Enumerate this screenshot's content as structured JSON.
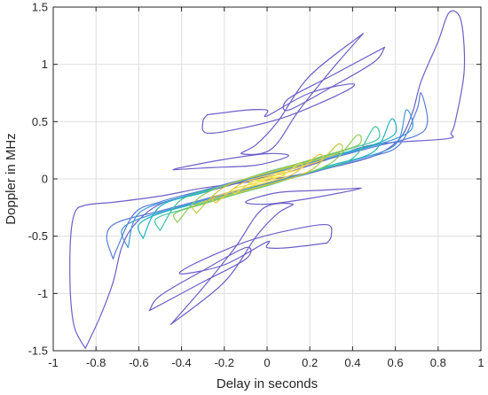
{
  "chart_data": {
    "type": "contour",
    "title": "",
    "xlabel": "Delay in seconds",
    "ylabel": "Doppler in MHz",
    "xlim": [
      -1,
      1
    ],
    "ylim": [
      -1.5,
      1.5
    ],
    "xticks": [
      -1,
      -0.8,
      -0.6,
      -0.4,
      -0.2,
      0,
      0.2,
      0.4,
      0.6,
      0.8,
      1
    ],
    "yticks": [
      -1.5,
      -1,
      -0.5,
      0,
      0.5,
      1,
      1.5
    ],
    "xtick_labels": [
      "-1",
      "-0.8",
      "-0.6",
      "-0.4",
      "-0.2",
      "0",
      "0.2",
      "0.4",
      "0.6",
      "0.8",
      "1"
    ],
    "ytick_labels": [
      "-1.5",
      "-1",
      "-0.5",
      "0",
      "0.5",
      "1",
      "1.5"
    ],
    "grid": true,
    "colormap": "parula",
    "contours": [
      {
        "level": 1,
        "color": "#6b5fc7",
        "pts": [
          [
            -0.85,
            -1.48
          ],
          [
            -0.9,
            -1.3
          ],
          [
            -0.92,
            -1.0
          ],
          [
            -0.92,
            -0.55
          ],
          [
            -0.9,
            -0.3
          ],
          [
            -0.85,
            -0.23
          ],
          [
            -0.7,
            -0.2
          ],
          [
            -0.5,
            -0.15
          ],
          [
            -0.3,
            -0.08
          ],
          [
            -0.1,
            -0.03
          ],
          [
            0.1,
            0.02
          ],
          [
            0.3,
            0.1
          ],
          [
            0.5,
            0.2
          ],
          [
            0.62,
            0.35
          ],
          [
            0.68,
            0.58
          ],
          [
            0.72,
            0.85
          ],
          [
            0.8,
            1.2
          ],
          [
            0.85,
            1.45
          ],
          [
            0.9,
            1.42
          ],
          [
            0.92,
            1.2
          ],
          [
            0.92,
            0.9
          ],
          [
            0.88,
            0.5
          ],
          [
            0.86,
            0.4
          ],
          [
            0.84,
            0.35
          ],
          [
            0.5,
            0.3
          ],
          [
            0.3,
            0.18
          ],
          [
            0.1,
            0.06
          ],
          [
            -0.1,
            -0.02
          ],
          [
            -0.3,
            -0.12
          ],
          [
            -0.5,
            -0.22
          ],
          [
            -0.62,
            -0.4
          ],
          [
            -0.68,
            -0.6
          ],
          [
            -0.72,
            -0.9
          ],
          [
            -0.78,
            -1.2
          ],
          [
            -0.85,
            -1.48
          ]
        ]
      },
      {
        "level": 1,
        "color": "#6b5fc7",
        "pts": [
          [
            -0.45,
            -1.27
          ],
          [
            -0.2,
            -0.9
          ],
          [
            -0.05,
            -0.5
          ],
          [
            0.05,
            -0.3
          ],
          [
            0.12,
            -0.22
          ],
          [
            -0.02,
            -0.26
          ],
          [
            -0.15,
            -0.6
          ],
          [
            -0.3,
            -0.95
          ],
          [
            -0.45,
            -1.27
          ]
        ]
      },
      {
        "level": 1,
        "color": "#6b5fc7",
        "pts": [
          [
            0.45,
            1.27
          ],
          [
            0.2,
            0.9
          ],
          [
            0.05,
            0.5
          ],
          [
            -0.05,
            0.3
          ],
          [
            -0.12,
            0.22
          ],
          [
            0.02,
            0.26
          ],
          [
            0.15,
            0.6
          ],
          [
            0.3,
            0.95
          ],
          [
            0.45,
            1.27
          ]
        ]
      },
      {
        "level": 1,
        "color": "#6b5fc7",
        "pts": [
          [
            0.44,
            -0.08
          ],
          [
            0.25,
            -0.1
          ],
          [
            0.05,
            -0.12
          ],
          [
            -0.1,
            -0.2
          ],
          [
            0.0,
            -0.22
          ],
          [
            0.2,
            -0.17
          ],
          [
            0.4,
            -0.1
          ],
          [
            0.44,
            -0.08
          ]
        ]
      },
      {
        "level": 1,
        "color": "#6b5fc7",
        "pts": [
          [
            -0.44,
            0.08
          ],
          [
            -0.25,
            0.1
          ],
          [
            -0.05,
            0.12
          ],
          [
            0.1,
            0.2
          ],
          [
            0.0,
            0.22
          ],
          [
            -0.2,
            0.17
          ],
          [
            -0.4,
            0.1
          ],
          [
            -0.44,
            0.08
          ]
        ]
      },
      {
        "level": 1,
        "color": "#6b5fc7",
        "pts": [
          [
            -0.28,
            0.56
          ],
          [
            -0.1,
            0.6
          ],
          [
            0.0,
            0.6
          ],
          [
            0.0,
            0.55
          ],
          [
            0.2,
            0.75
          ],
          [
            0.4,
            0.83
          ],
          [
            0.35,
            0.75
          ],
          [
            0.1,
            0.55
          ],
          [
            -0.1,
            0.45
          ],
          [
            -0.28,
            0.4
          ],
          [
            -0.3,
            0.5
          ],
          [
            -0.28,
            0.56
          ]
        ]
      },
      {
        "level": 1,
        "color": "#6b5fc7",
        "pts": [
          [
            0.28,
            -0.56
          ],
          [
            0.1,
            -0.6
          ],
          [
            0.0,
            -0.6
          ],
          [
            0.0,
            -0.55
          ],
          [
            -0.2,
            -0.75
          ],
          [
            -0.4,
            -0.83
          ],
          [
            -0.35,
            -0.75
          ],
          [
            -0.1,
            -0.55
          ],
          [
            0.1,
            -0.45
          ],
          [
            0.28,
            -0.4
          ],
          [
            0.3,
            -0.5
          ],
          [
            0.28,
            -0.56
          ]
        ]
      },
      {
        "level": 1,
        "color": "#6b5fc7",
        "pts": [
          [
            0.55,
            1.15
          ],
          [
            0.3,
            0.9
          ],
          [
            0.1,
            0.7
          ],
          [
            0.1,
            0.6
          ],
          [
            0.3,
            0.8
          ],
          [
            0.5,
            1.02
          ],
          [
            0.55,
            1.15
          ]
        ]
      },
      {
        "level": 1,
        "color": "#6b5fc7",
        "pts": [
          [
            -0.55,
            -1.15
          ],
          [
            -0.3,
            -0.9
          ],
          [
            -0.1,
            -0.7
          ],
          [
            -0.1,
            -0.6
          ],
          [
            -0.3,
            -0.8
          ],
          [
            -0.5,
            -1.02
          ],
          [
            -0.55,
            -1.15
          ]
        ]
      },
      {
        "level": 2,
        "color": "#5a7dd6",
        "pts": [
          [
            -0.72,
            -0.7
          ],
          [
            -0.75,
            -0.5
          ],
          [
            -0.7,
            -0.38
          ],
          [
            -0.5,
            -0.28
          ],
          [
            -0.3,
            -0.18
          ],
          [
            -0.1,
            -0.08
          ],
          [
            0.1,
            0.0
          ],
          [
            0.3,
            0.1
          ],
          [
            0.5,
            0.2
          ],
          [
            0.62,
            0.3
          ],
          [
            0.7,
            0.6
          ],
          [
            0.72,
            0.75
          ],
          [
            0.75,
            0.5
          ],
          [
            0.7,
            0.38
          ],
          [
            0.5,
            0.28
          ],
          [
            0.3,
            0.18
          ],
          [
            0.1,
            0.08
          ],
          [
            -0.1,
            0.0
          ],
          [
            -0.3,
            -0.1
          ],
          [
            -0.5,
            -0.2
          ],
          [
            -0.62,
            -0.3
          ],
          [
            -0.7,
            -0.6
          ],
          [
            -0.72,
            -0.7
          ]
        ]
      },
      {
        "level": 3,
        "color": "#3f98d9",
        "pts": [
          [
            -0.65,
            -0.6
          ],
          [
            -0.68,
            -0.45
          ],
          [
            -0.6,
            -0.35
          ],
          [
            -0.4,
            -0.24
          ],
          [
            -0.2,
            -0.14
          ],
          [
            0.0,
            -0.04
          ],
          [
            0.2,
            0.06
          ],
          [
            0.4,
            0.16
          ],
          [
            0.6,
            0.3
          ],
          [
            0.65,
            0.6
          ],
          [
            0.68,
            0.45
          ],
          [
            0.6,
            0.35
          ],
          [
            0.4,
            0.24
          ],
          [
            0.2,
            0.14
          ],
          [
            0.0,
            0.04
          ],
          [
            -0.2,
            -0.06
          ],
          [
            -0.4,
            -0.16
          ],
          [
            -0.6,
            -0.3
          ],
          [
            -0.65,
            -0.6
          ]
        ]
      },
      {
        "level": 4,
        "color": "#22b4c2",
        "pts": [
          [
            -0.58,
            -0.52
          ],
          [
            -0.6,
            -0.4
          ],
          [
            -0.5,
            -0.3
          ],
          [
            -0.3,
            -0.2
          ],
          [
            -0.1,
            -0.1
          ],
          [
            0.1,
            0.0
          ],
          [
            0.3,
            0.12
          ],
          [
            0.5,
            0.24
          ],
          [
            0.58,
            0.52
          ],
          [
            0.6,
            0.4
          ],
          [
            0.5,
            0.3
          ],
          [
            0.3,
            0.2
          ],
          [
            0.1,
            0.1
          ],
          [
            -0.1,
            0.0
          ],
          [
            -0.3,
            -0.12
          ],
          [
            -0.5,
            -0.24
          ],
          [
            -0.58,
            -0.52
          ]
        ]
      },
      {
        "level": 5,
        "color": "#3fc59a",
        "pts": [
          [
            -0.5,
            -0.45
          ],
          [
            -0.52,
            -0.35
          ],
          [
            -0.4,
            -0.27
          ],
          [
            -0.2,
            -0.16
          ],
          [
            0.0,
            -0.06
          ],
          [
            0.2,
            0.06
          ],
          [
            0.4,
            0.18
          ],
          [
            0.5,
            0.45
          ],
          [
            0.52,
            0.35
          ],
          [
            0.4,
            0.27
          ],
          [
            0.2,
            0.16
          ],
          [
            0.0,
            0.06
          ],
          [
            -0.2,
            -0.06
          ],
          [
            -0.4,
            -0.18
          ],
          [
            -0.5,
            -0.45
          ]
        ]
      },
      {
        "level": 6,
        "color": "#8ccb5e",
        "pts": [
          [
            -0.42,
            -0.38
          ],
          [
            -0.43,
            -0.3
          ],
          [
            -0.3,
            -0.22
          ],
          [
            -0.1,
            -0.11
          ],
          [
            0.1,
            0.0
          ],
          [
            0.3,
            0.14
          ],
          [
            0.42,
            0.38
          ],
          [
            0.43,
            0.3
          ],
          [
            0.3,
            0.22
          ],
          [
            0.1,
            0.11
          ],
          [
            -0.1,
            0.0
          ],
          [
            -0.3,
            -0.14
          ],
          [
            -0.42,
            -0.38
          ]
        ]
      },
      {
        "level": 7,
        "color": "#c5c63a",
        "pts": [
          [
            -0.33,
            -0.3
          ],
          [
            -0.34,
            -0.23
          ],
          [
            -0.2,
            -0.15
          ],
          [
            0.0,
            -0.05
          ],
          [
            0.2,
            0.07
          ],
          [
            0.33,
            0.3
          ],
          [
            0.34,
            0.23
          ],
          [
            0.2,
            0.15
          ],
          [
            0.0,
            0.05
          ],
          [
            -0.2,
            -0.07
          ],
          [
            -0.33,
            -0.3
          ]
        ]
      },
      {
        "level": 8,
        "color": "#e8c83a",
        "pts": [
          [
            -0.24,
            -0.21
          ],
          [
            -0.25,
            -0.16
          ],
          [
            -0.12,
            -0.09
          ],
          [
            0.0,
            -0.03
          ],
          [
            0.12,
            0.04
          ],
          [
            0.24,
            0.21
          ],
          [
            0.25,
            0.16
          ],
          [
            0.12,
            0.09
          ],
          [
            0.0,
            0.03
          ],
          [
            -0.12,
            -0.04
          ],
          [
            -0.24,
            -0.21
          ]
        ]
      },
      {
        "level": 9,
        "color": "#f0d840",
        "pts": [
          [
            -0.15,
            -0.13
          ],
          [
            -0.16,
            -0.09
          ],
          [
            -0.06,
            -0.04
          ],
          [
            0.06,
            0.02
          ],
          [
            0.15,
            0.13
          ],
          [
            0.16,
            0.09
          ],
          [
            0.06,
            0.04
          ],
          [
            -0.06,
            -0.02
          ],
          [
            -0.15,
            -0.13
          ]
        ]
      },
      {
        "level": 10,
        "color": "#f7e84a",
        "pts": [
          [
            -0.07,
            -0.06
          ],
          [
            -0.08,
            -0.03
          ],
          [
            0.0,
            0.0
          ],
          [
            0.07,
            0.06
          ],
          [
            0.08,
            0.03
          ],
          [
            0.0,
            0.0
          ],
          [
            -0.07,
            -0.06
          ]
        ]
      }
    ]
  }
}
